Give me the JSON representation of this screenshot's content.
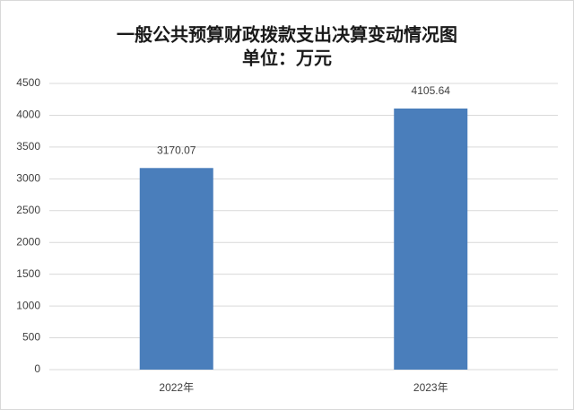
{
  "chart_data": {
    "type": "bar",
    "title": "一般公共预算财政拨款支出决算变动情况图",
    "subtitle": "单位：万元",
    "categories": [
      "2022年",
      "2023年"
    ],
    "values": [
      3170.07,
      4105.64
    ],
    "color": "#4a7ebb",
    "ylim": [
      0,
      4500
    ],
    "yticks": [
      0,
      500,
      1000,
      1500,
      2000,
      2500,
      3000,
      3500,
      4000,
      4500
    ],
    "grid": true
  }
}
